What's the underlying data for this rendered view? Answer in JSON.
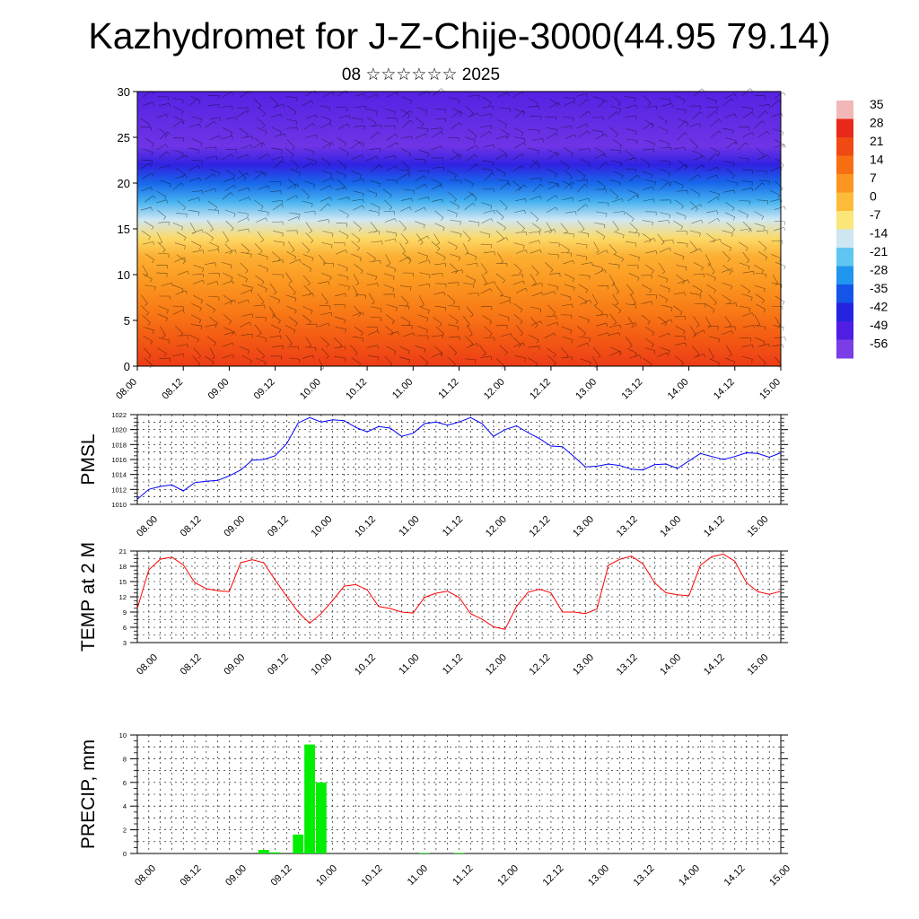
{
  "header": {
    "title": "Kazhydromet for J-Z-Chije-3000(44.95 79.14)",
    "subtitle": "08 ☆☆☆☆☆☆ 2025"
  },
  "time_labels": [
    "08.00",
    "08.12",
    "09.00",
    "09.12",
    "10.00",
    "10.12",
    "11.00",
    "11.12",
    "12.00",
    "12.12",
    "13.00",
    "13.12",
    "14.00",
    "14.12",
    "15.00"
  ],
  "colorbar": {
    "labels": [
      "35",
      "28",
      "21",
      "14",
      "7",
      "0",
      "-7",
      "-14",
      "-21",
      "-28",
      "-35",
      "-42",
      "-49",
      "-56"
    ],
    "colors": [
      "#f2b8b8",
      "#e8291c",
      "#f04a14",
      "#f76f12",
      "#fb9620",
      "#fdbb3a",
      "#fbe67a",
      "#cfe7f3",
      "#5fc6f2",
      "#2196ee",
      "#1454e8",
      "#2424e0",
      "#4f1ee2",
      "#7b3de6"
    ]
  },
  "chart_data": [
    {
      "type": "heatmap",
      "name_hint": "vertical cross-section",
      "ylim": [
        0,
        30
      ],
      "y_ticks": [
        0,
        5,
        10,
        15,
        20,
        25,
        30
      ],
      "x_tick_labels": [
        "08.00",
        "08.12",
        "09.00",
        "09.12",
        "10.00",
        "10.12",
        "11.00",
        "11.12",
        "12.00",
        "12.12",
        "13.00",
        "13.12",
        "14.00",
        "14.12",
        "15.00"
      ],
      "value_range": [
        -56,
        35
      ],
      "temperature_by_level": [
        {
          "level": 0,
          "value": 24
        },
        {
          "level": 3,
          "value": 18
        },
        {
          "level": 6,
          "value": 12
        },
        {
          "level": 9,
          "value": 7
        },
        {
          "level": 12,
          "value": 2
        },
        {
          "level": 14,
          "value": -5
        },
        {
          "level": 16,
          "value": -14
        },
        {
          "level": 18,
          "value": -24
        },
        {
          "level": 20,
          "value": -33
        },
        {
          "level": 22,
          "value": -44
        },
        {
          "level": 24,
          "value": -54
        },
        {
          "level": 27,
          "value": -52
        },
        {
          "level": 30,
          "value": -50
        }
      ]
    },
    {
      "type": "line",
      "ylabel": "PMSL",
      "ylim": [
        1010,
        1022
      ],
      "y_ticks": [
        1010,
        1012,
        1014,
        1016,
        1018,
        1020,
        1022
      ],
      "x_range": [
        0,
        56
      ],
      "x_tick_labels": [
        "08.00",
        "08.12",
        "09.00",
        "09.12",
        "10.00",
        "10.12",
        "11.00",
        "11.12",
        "12.00",
        "12.12",
        "13.00",
        "13.12",
        "14.00",
        "14.12",
        "15.00"
      ],
      "series": [
        {
          "color": "#0000ff",
          "values": [
            1010.7,
            1012.0,
            1012.4,
            1012.6,
            1011.8,
            1012.9,
            1013.1,
            1013.2,
            1013.8,
            1014.6,
            1015.9,
            1016.0,
            1016.5,
            1018.1,
            1020.9,
            1021.6,
            1021.0,
            1021.3,
            1021.2,
            1020.3,
            1019.7,
            1020.4,
            1020.2,
            1019.1,
            1019.5,
            1020.8,
            1021.0,
            1020.6,
            1021.0,
            1021.6,
            1020.8,
            1019.1,
            1020.0,
            1020.5,
            1019.6,
            1018.8,
            1017.8,
            1017.7,
            1016.4,
            1015.0,
            1015.1,
            1015.4,
            1015.2,
            1014.7,
            1014.6,
            1015.3,
            1015.4,
            1014.8,
            1015.8,
            1016.8,
            1016.4,
            1016.0,
            1016.4,
            1016.9,
            1016.8,
            1016.3,
            1016.9
          ]
        }
      ]
    },
    {
      "type": "line",
      "ylabel": "TEMP at 2 M",
      "ylim": [
        3,
        21
      ],
      "y_ticks": [
        3,
        6,
        9,
        12,
        15,
        18,
        21
      ],
      "x_range": [
        0,
        56
      ],
      "x_tick_labels": [
        "08.00",
        "08.12",
        "09.00",
        "09.12",
        "10.00",
        "10.12",
        "11.00",
        "11.12",
        "12.00",
        "12.12",
        "13.00",
        "13.12",
        "14.00",
        "14.12",
        "15.00"
      ],
      "series": [
        {
          "color": "#ff0000",
          "values": [
            9.7,
            17.3,
            19.4,
            19.8,
            18.3,
            14.8,
            13.6,
            13.2,
            13.0,
            18.7,
            19.3,
            18.7,
            15.3,
            12.1,
            9.0,
            6.8,
            8.7,
            11.3,
            14.1,
            14.4,
            13.4,
            10.1,
            9.7,
            9.0,
            8.8,
            11.9,
            12.7,
            13.1,
            11.9,
            8.7,
            7.6,
            6.1,
            5.6,
            10.1,
            12.9,
            13.5,
            12.8,
            9.0,
            9.0,
            8.7,
            9.6,
            18.2,
            19.4,
            20.0,
            18.5,
            14.8,
            12.8,
            12.4,
            12.2,
            18.2,
            19.9,
            20.4,
            19.0,
            14.8,
            13.0,
            12.5,
            13.1
          ]
        }
      ]
    },
    {
      "type": "bar",
      "ylabel": "PRECIP, mm",
      "ylim": [
        0,
        10
      ],
      "y_ticks": [
        0,
        2,
        4,
        6,
        8,
        10
      ],
      "x_range": [
        0,
        56
      ],
      "x_tick_labels": [
        "08.00",
        "08.12",
        "09.00",
        "09.12",
        "10.00",
        "10.12",
        "11.00",
        "11.12",
        "12.00",
        "12.12",
        "13.00",
        "13.12",
        "14.00",
        "14.12",
        "15.00"
      ],
      "series": [
        {
          "color": "#00ee00",
          "bars": [
            {
              "x": 11,
              "value": 0.3
            },
            {
              "x": 12,
              "value": 0.1
            },
            {
              "x": 14,
              "value": 1.6
            },
            {
              "x": 15,
              "value": 9.2
            },
            {
              "x": 16,
              "value": 6.0
            },
            {
              "x": 25,
              "value": 0.05
            },
            {
              "x": 28,
              "value": 0.05
            }
          ]
        }
      ]
    }
  ]
}
